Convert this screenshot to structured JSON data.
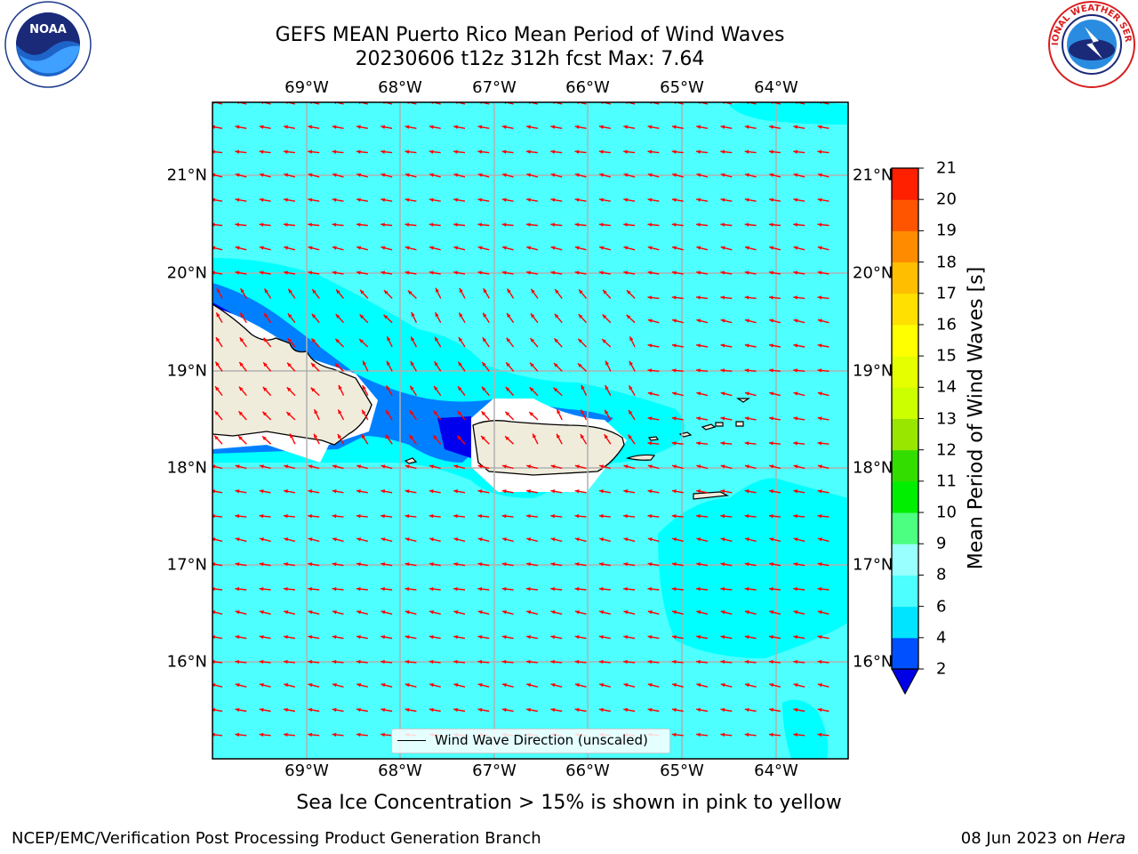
{
  "title": {
    "line1": "GEFS MEAN Puerto Rico Mean Period of Wind Waves",
    "line2": "20230606 t12z 312h fcst   Max: 7.64"
  },
  "logos": {
    "noaa": {
      "text": "NOAA",
      "ring_text": "NATIONAL OCEANIC AND ATMOSPHERIC ADMINISTRATION",
      "bottom_text": "U.S. DEPARTMENT OF COMMERCE",
      "icon": "noaa-logo"
    },
    "nws": {
      "text": "NATIONAL WEATHER SERVICE",
      "icon": "nws-logo"
    }
  },
  "map": {
    "lon_labels": [
      "69°W",
      "68°W",
      "67°W",
      "66°W",
      "65°W",
      "64°W"
    ],
    "lat_labels": [
      "21°N",
      "20°N",
      "19°N",
      "18°N",
      "17°N",
      "16°N"
    ],
    "legend": "Wind Wave Direction (unscaled)",
    "colors": {
      "ocean_main": "#4dffff",
      "ocean_lighter": "#00ffff",
      "coastal_mid": "#0080ff",
      "coastal_deep": "#0000ee",
      "land": "#f0ecdc",
      "arrow": "#ff0000",
      "grid": "#b0b0b0"
    }
  },
  "colorbar": {
    "label": "Mean Period of Wind Waves [s]",
    "ticks": [
      "2",
      "4",
      "6",
      "8",
      "9",
      "10",
      "11",
      "12",
      "13",
      "14",
      "15",
      "16",
      "17",
      "18",
      "19",
      "20",
      "21"
    ],
    "colors": [
      "#0050ff",
      "#00e4ff",
      "#4dffff",
      "#99ffff",
      "#4dff80",
      "#00ee00",
      "#33dd00",
      "#99e600",
      "#ccff00",
      "#e6ff00",
      "#ffff00",
      "#ffe000",
      "#ffbf00",
      "#ff8c00",
      "#ff5500",
      "#ff2000"
    ],
    "under_color": "#0000e6"
  },
  "footer": {
    "center": "Sea Ice Concentration > 15% is shown in pink to yellow",
    "left": "NCEP/EMC/Verification Post Processing Product Generation Branch",
    "right_date": "08 Jun 2023 on",
    "right_host": "Hera"
  }
}
